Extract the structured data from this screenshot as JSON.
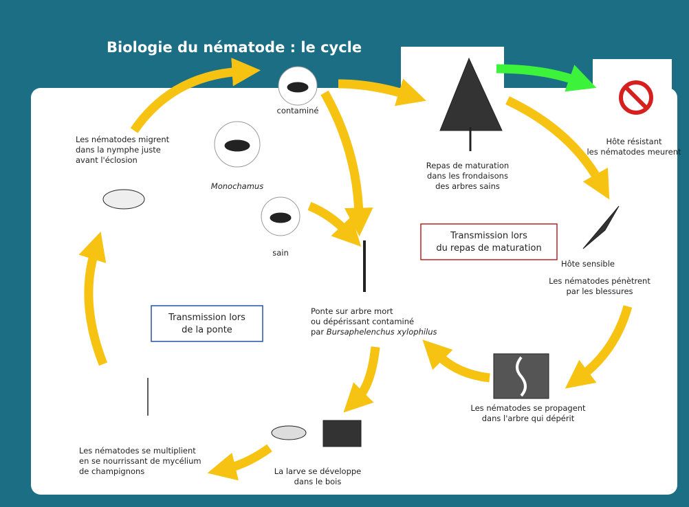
{
  "title": "Biologie du nématode : le cycle",
  "nodes": [
    {
      "lines": [
        "contaminé"
      ]
    },
    {
      "lines": [
        "Monochamus"
      ]
    },
    {
      "lines": [
        "sain"
      ]
    },
    {
      "lines": [
        "Repas de maturation",
        "dans les frondaisons",
        "des arbres sains"
      ]
    },
    {
      "lines": [
        "Hôte résistant",
        "les nématodes meurent"
      ]
    },
    {
      "lines": [
        "Hôte sensible"
      ]
    },
    {
      "lines": [
        "Les nématodes pénètrent",
        "par les blessures"
      ]
    },
    {
      "lines": [
        "Les nématodes se propagent",
        "dans l'arbre qui dépérit"
      ]
    },
    {
      "lines": [
        "Ponte sur arbre mort",
        "ou dépérissant contaminé"
      ],
      "prefix": "par",
      "species": "Bursaphelenchus xylophilus"
    },
    {
      "lines": [
        "La larve se développe",
        "dans le bois"
      ]
    },
    {
      "lines": [
        "Les nématodes se multiplient",
        "en se nourrissant de mycélium",
        "de champignons"
      ]
    },
    {
      "lines": [
        "Les nématodes migrent",
        "dans la nymphe juste",
        "avant l'éclosion"
      ]
    }
  ],
  "boxes": [
    {
      "lines": [
        "Transmission lors",
        "de la ponte"
      ]
    },
    {
      "lines": [
        "Transmission lors",
        "du repas de maturation"
      ]
    }
  ]
}
